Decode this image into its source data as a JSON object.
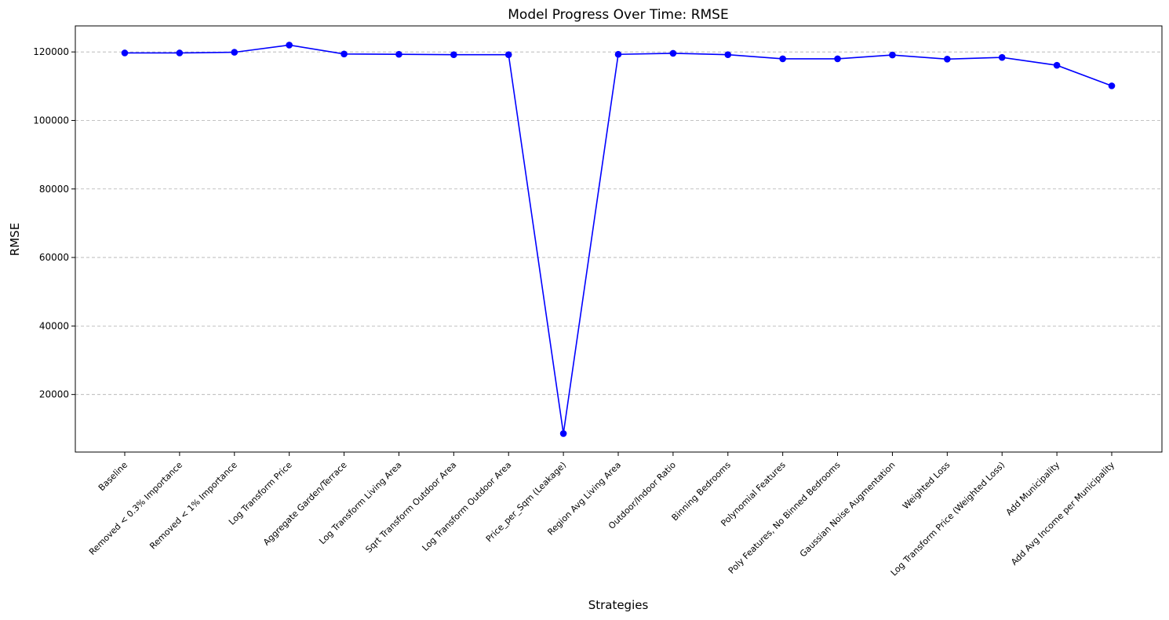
{
  "chart_data": {
    "type": "line",
    "title": "Model Progress Over Time: RMSE",
    "xlabel": "Strategies",
    "ylabel": "RMSE",
    "categories": [
      "Baseline",
      "Removed < 0.3% Importance",
      "Removed < 1% Importance",
      "Log Transform Price",
      "Aggregate Garden/Terrace",
      "Log Transform Living Area",
      "Sqrt Transform Outdoor Area",
      "Log Transform Outdoor Area",
      "Price_per_Sqm (Leakage)",
      "Region Avg Living Area",
      "Outdoor/Indoor Ratio",
      "Binning Bedrooms",
      "Polynomial Features",
      "Poly Features, No Binned Bedrooms",
      "Gaussian Noise Augmentation",
      "Weighted Loss",
      "Log Transform Price (Weighted Loss)",
      "Add Municipality",
      "Add Avg Income per Municipality"
    ],
    "series": [
      {
        "values": [
          119700,
          119700,
          119900,
          122000,
          119400,
          119300,
          119200,
          119200,
          8600,
          119300,
          119600,
          119200,
          118000,
          118000,
          119100,
          117900,
          118400,
          116100,
          110100
        ]
      }
    ],
    "yticks": [
      20000,
      40000,
      60000,
      80000,
      100000,
      120000
    ],
    "ylim": [
      3200,
      127600
    ],
    "grid": "y-dashed",
    "line_color": "#0000ff",
    "marker": "circle"
  }
}
